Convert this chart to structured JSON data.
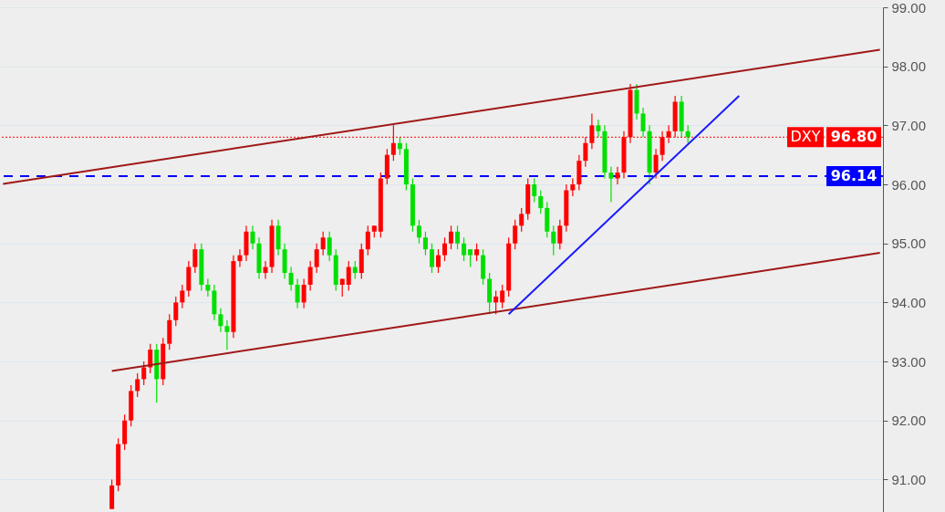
{
  "chart_data": {
    "type": "candlestick",
    "categories": [
      null,
      null,
      null,
      null,
      null,
      null,
      null,
      null,
      null,
      null,
      null,
      null,
      null,
      null,
      null,
      null,
      null,
      null,
      null,
      null,
      null,
      null,
      null,
      null,
      null,
      null,
      null,
      null,
      null,
      null,
      null,
      null,
      null,
      null,
      null,
      null,
      null,
      null,
      null,
      null,
      null,
      null,
      null,
      null,
      null,
      null,
      null,
      null,
      null,
      null,
      null,
      null,
      null,
      null,
      null,
      null,
      null,
      null,
      null,
      null,
      null,
      null,
      null,
      null,
      null,
      null,
      null,
      null,
      null,
      null,
      null,
      null,
      null,
      null,
      null,
      null,
      null,
      null,
      null,
      null,
      null,
      null,
      null,
      null,
      null,
      null,
      null,
      null,
      null,
      null,
      null,
      null,
      null,
      null,
      null,
      null,
      null,
      null,
      null,
      null,
      null,
      null,
      null,
      null,
      null,
      null,
      null,
      null,
      null,
      null,
      null,
      null,
      null,
      null,
      null,
      null,
      null,
      null,
      null,
      null,
      null,
      null,
      null,
      null,
      null,
      null,
      null,
      null,
      null,
      null,
      null,
      null,
      null,
      null,
      null,
      null,
      null,
      null
    ],
    "ohlc": [
      null,
      null,
      null,
      null,
      null,
      null,
      null,
      null,
      null,
      null,
      null,
      null,
      null,
      null,
      null,
      null,
      null,
      [
        90.5,
        91.0,
        90.5,
        90.9
      ],
      [
        90.9,
        91.7,
        90.8,
        91.6
      ],
      [
        91.6,
        92.1,
        91.5,
        92.0
      ],
      [
        92.0,
        92.6,
        91.9,
        92.5
      ],
      [
        92.5,
        92.8,
        92.4,
        92.7
      ],
      [
        92.7,
        93.0,
        92.6,
        92.9
      ],
      [
        92.9,
        93.3,
        92.8,
        93.2
      ],
      [
        93.2,
        93.3,
        92.3,
        92.7
      ],
      [
        92.7,
        93.4,
        92.6,
        93.3
      ],
      [
        93.3,
        93.8,
        93.2,
        93.7
      ],
      [
        93.7,
        94.1,
        93.6,
        94.0
      ],
      [
        94.0,
        94.3,
        93.9,
        94.2
      ],
      [
        94.2,
        94.7,
        94.1,
        94.6
      ],
      [
        94.6,
        95.0,
        94.5,
        94.9
      ],
      [
        94.9,
        95.0,
        94.2,
        94.3
      ],
      [
        94.3,
        94.4,
        94.1,
        94.2
      ],
      [
        94.2,
        94.3,
        93.7,
        93.8
      ],
      [
        93.8,
        93.9,
        93.5,
        93.6
      ],
      [
        93.6,
        93.7,
        93.2,
        93.5
      ],
      [
        93.5,
        94.8,
        93.4,
        94.7
      ],
      [
        94.7,
        94.9,
        94.6,
        94.8
      ],
      [
        94.8,
        95.3,
        94.7,
        95.2
      ],
      [
        95.2,
        95.3,
        94.9,
        95.0
      ],
      [
        95.0,
        95.1,
        94.4,
        94.5
      ],
      [
        94.5,
        94.7,
        94.4,
        94.6
      ],
      [
        94.6,
        95.4,
        94.5,
        95.3
      ],
      [
        95.3,
        95.4,
        94.8,
        94.9
      ],
      [
        94.9,
        95.0,
        94.4,
        94.5
      ],
      [
        94.5,
        94.6,
        94.2,
        94.3
      ],
      [
        94.3,
        94.4,
        93.9,
        94.0
      ],
      [
        94.0,
        94.4,
        93.9,
        94.3
      ],
      [
        94.3,
        94.7,
        94.2,
        94.6
      ],
      [
        94.6,
        95.0,
        94.5,
        94.9
      ],
      [
        94.9,
        95.2,
        94.8,
        95.1
      ],
      [
        95.1,
        95.2,
        94.7,
        94.8
      ],
      [
        94.8,
        94.9,
        94.2,
        94.3
      ],
      [
        94.3,
        94.4,
        94.1,
        94.4
      ],
      [
        94.3,
        94.7,
        94.2,
        94.6
      ],
      [
        94.6,
        94.7,
        94.4,
        94.5
      ],
      [
        94.5,
        95.0,
        94.4,
        94.9
      ],
      [
        94.9,
        95.3,
        94.8,
        95.2
      ],
      [
        95.2,
        95.3,
        95.1,
        95.3
      ],
      [
        95.2,
        96.2,
        95.1,
        96.1
      ],
      [
        96.1,
        96.6,
        96.0,
        96.5
      ],
      [
        96.5,
        97.0,
        96.4,
        96.7
      ],
      [
        96.7,
        96.8,
        96.5,
        96.6
      ],
      [
        96.6,
        96.7,
        95.9,
        96.0
      ],
      [
        96.0,
        96.1,
        95.2,
        95.3
      ],
      [
        95.3,
        95.4,
        95.0,
        95.1
      ],
      [
        95.1,
        95.2,
        94.8,
        94.9
      ],
      [
        94.9,
        95.0,
        94.5,
        94.6
      ],
      [
        94.6,
        94.9,
        94.5,
        94.8
      ],
      [
        94.8,
        95.1,
        94.7,
        95.0
      ],
      [
        95.0,
        95.3,
        94.9,
        95.2
      ],
      [
        95.2,
        95.3,
        94.9,
        95.0
      ],
      [
        95.0,
        95.1,
        94.7,
        94.8
      ],
      [
        94.9,
        94.9,
        94.6,
        94.8
      ],
      [
        94.8,
        95.0,
        94.7,
        94.9
      ],
      [
        94.8,
        94.9,
        94.3,
        94.4
      ],
      [
        94.4,
        94.5,
        93.8,
        94.0
      ],
      [
        94.0,
        94.2,
        93.8,
        94.1
      ],
      [
        94.0,
        94.3,
        93.9,
        94.2
      ],
      [
        94.2,
        95.1,
        94.1,
        95.0
      ],
      [
        95.0,
        95.4,
        94.9,
        95.3
      ],
      [
        95.3,
        95.6,
        95.2,
        95.5
      ],
      [
        95.5,
        96.1,
        95.4,
        96.0
      ],
      [
        96.0,
        96.1,
        95.7,
        95.8
      ],
      [
        95.8,
        95.9,
        95.5,
        95.6
      ],
      [
        95.6,
        95.7,
        95.1,
        95.2
      ],
      [
        95.2,
        95.3,
        94.8,
        95.0
      ],
      [
        95.0,
        95.4,
        94.9,
        95.3
      ],
      [
        95.3,
        96.0,
        95.2,
        95.9
      ],
      [
        95.9,
        96.1,
        95.8,
        96.0
      ],
      [
        96.0,
        96.5,
        95.9,
        96.4
      ],
      [
        96.4,
        96.8,
        96.3,
        96.7
      ],
      [
        96.7,
        97.2,
        96.6,
        97.0
      ],
      [
        97.0,
        97.1,
        96.8,
        96.9
      ],
      [
        96.9,
        97.0,
        96.1,
        96.2
      ],
      [
        96.2,
        96.3,
        95.7,
        96.1
      ],
      [
        96.1,
        96.3,
        96.0,
        96.2
      ],
      [
        96.2,
        96.9,
        96.1,
        96.8
      ],
      [
        96.8,
        97.7,
        96.7,
        97.6
      ],
      [
        97.6,
        97.7,
        97.1,
        97.2
      ],
      [
        97.2,
        97.3,
        96.8,
        96.9
      ],
      [
        96.9,
        97.0,
        96.0,
        96.2
      ],
      [
        96.2,
        96.6,
        96.1,
        96.5
      ],
      [
        96.5,
        96.9,
        96.4,
        96.8
      ],
      [
        96.8,
        97.0,
        96.7,
        96.9
      ],
      [
        96.9,
        97.5,
        96.8,
        97.4
      ],
      [
        97.4,
        97.5,
        96.8,
        96.9
      ],
      [
        96.9,
        97.0,
        96.7,
        96.8
      ],
      null,
      null,
      null,
      null,
      null,
      null,
      null,
      null,
      null,
      null,
      null,
      null,
      null,
      null,
      null,
      null,
      null,
      null,
      null,
      null,
      null,
      null,
      null,
      null,
      null,
      null,
      null,
      null,
      null,
      null
    ],
    "colors": [
      null,
      null,
      null,
      null,
      null,
      null,
      null,
      null,
      null,
      null,
      null,
      null,
      null,
      null,
      null,
      null,
      null,
      "#ff0000",
      "#ff0000",
      "#ff0000",
      "#ff0000",
      "#ff0000",
      "#ff0000",
      "#ff0000",
      "#00e000",
      "#ff0000",
      "#ff0000",
      "#ff0000",
      "#ff0000",
      "#ff0000",
      "#ff0000",
      "#00e000",
      "#00e000",
      "#00e000",
      "#00e000",
      "#00e000",
      "#ff0000",
      "#ff0000",
      "#ff0000",
      "#00e000",
      "#00e000",
      "#ff0000",
      "#ff0000",
      "#00e000",
      "#00e000",
      "#00e000",
      "#00e000",
      "#ff0000",
      "#ff0000",
      "#ff0000",
      "#ff0000",
      "#00e000",
      "#00e000",
      "#ff0000",
      "#ff0000",
      "#00e000",
      "#ff0000",
      "#ff0000",
      "#ff0000",
      "#ff0000",
      "#ff0000",
      "#ff0000",
      "#00e000",
      "#00e000",
      "#00e000",
      "#00e000",
      "#00e000",
      "#00e000",
      "#ff0000",
      "#ff0000",
      "#ff0000",
      "#00e000",
      "#00e000",
      "#00e000",
      "#ff0000",
      "#00e000",
      "#00e000",
      "#ff0000",
      "#ff0000",
      "#ff0000",
      "#ff0000",
      "#ff0000",
      "#ff0000",
      "#00e000",
      "#00e000",
      "#00e000",
      "#00e000",
      "#ff0000",
      "#ff0000",
      "#ff0000",
      "#ff0000",
      "#ff0000",
      "#ff0000",
      "#00e000",
      "#00e000",
      "#00e000",
      "#ff0000",
      "#ff0000",
      "#ff0000",
      "#00e000",
      "#00e000",
      "#00e000",
      "#ff0000",
      "#ff0000",
      "#ff0000",
      "#ff0000",
      "#00e000",
      "#00e000",
      null,
      null,
      null,
      null,
      null,
      null,
      null,
      null,
      null,
      null,
      null,
      null,
      null,
      null,
      null,
      null,
      null,
      null,
      null,
      null,
      null,
      null,
      null,
      null,
      null,
      null,
      null,
      null,
      null,
      null
    ],
    "series": [
      {
        "type": "line",
        "color": "#a01818",
        "values": [
          96.01,
          null,
          null,
          null,
          null,
          null,
          null,
          null,
          null,
          null,
          null,
          null,
          null,
          null,
          null,
          null,
          null,
          null,
          null,
          null,
          null,
          null,
          null,
          null,
          null,
          null,
          null,
          null,
          null,
          null,
          null,
          null,
          null,
          null,
          null,
          null,
          null,
          null,
          null,
          null,
          null,
          null,
          null,
          null,
          null,
          null,
          null,
          null,
          null,
          null,
          null,
          null,
          null,
          null,
          null,
          null,
          null,
          null,
          null,
          null,
          null,
          null,
          null,
          null,
          null,
          null,
          null,
          null,
          null,
          null,
          null,
          null,
          null,
          null,
          null,
          null,
          null,
          null,
          null,
          null,
          null,
          null,
          null,
          null,
          null,
          null,
          null,
          null,
          null,
          null,
          null,
          null,
          null,
          null,
          null,
          null,
          null,
          null,
          null,
          null,
          null,
          null,
          null,
          null,
          null,
          null,
          null,
          null,
          null,
          null,
          null,
          null,
          null,
          null,
          null,
          null,
          null,
          null,
          null,
          null,
          null,
          null,
          null,
          null,
          null,
          null,
          null,
          null,
          null,
          null,
          null,
          null,
          null,
          null,
          null,
          null,
          null,
          98.28
        ]
      },
      {
        "type": "line",
        "color": "#a01818",
        "values": [
          null,
          null,
          null,
          null,
          null,
          null,
          null,
          null,
          null,
          null,
          null,
          null,
          null,
          null,
          null,
          null,
          null,
          92.84,
          null,
          null,
          null,
          null,
          null,
          null,
          null,
          null,
          null,
          null,
          null,
          null,
          null,
          null,
          null,
          null,
          null,
          null,
          null,
          null,
          null,
          null,
          null,
          null,
          null,
          null,
          null,
          null,
          null,
          null,
          null,
          null,
          null,
          null,
          null,
          null,
          null,
          null,
          null,
          null,
          null,
          null,
          null,
          null,
          null,
          null,
          null,
          null,
          null,
          null,
          null,
          null,
          null,
          null,
          null,
          null,
          null,
          null,
          null,
          null,
          null,
          null,
          null,
          null,
          null,
          null,
          null,
          null,
          null,
          null,
          null,
          null,
          null,
          null,
          null,
          null,
          null,
          null,
          null,
          null,
          null,
          null,
          null,
          null,
          null,
          null,
          null,
          null,
          null,
          null,
          null,
          null,
          null,
          null,
          null,
          null,
          null,
          null,
          null,
          null,
          null,
          null,
          null,
          null,
          null,
          null,
          null,
          null,
          null,
          null,
          null,
          null,
          null,
          null,
          null,
          null,
          null,
          null,
          null,
          94.84
        ]
      },
      {
        "type": "line",
        "color": "#1a1aff",
        "values": [
          null,
          null,
          null,
          null,
          null,
          null,
          null,
          null,
          null,
          null,
          null,
          null,
          null,
          null,
          null,
          null,
          null,
          null,
          null,
          null,
          null,
          null,
          null,
          null,
          null,
          null,
          null,
          null,
          null,
          null,
          null,
          null,
          null,
          null,
          null,
          null,
          null,
          null,
          null,
          null,
          null,
          null,
          null,
          null,
          null,
          null,
          null,
          null,
          null,
          null,
          null,
          null,
          null,
          null,
          null,
          null,
          null,
          null,
          null,
          null,
          null,
          null,
          null,
          null,
          null,
          null,
          null,
          null,
          null,
          null,
          null,
          null,
          null,
          null,
          null,
          null,
          null,
          null,
          null,
          93.8,
          null,
          null,
          null,
          null,
          null,
          null,
          null,
          null,
          null,
          null,
          null,
          null,
          null,
          null,
          null,
          null,
          null,
          null,
          null,
          null,
          null,
          null,
          null,
          null,
          null,
          null,
          null,
          null,
          null,
          null,
          null,
          null,
          null,
          null,
          null,
          97.5,
          null,
          null,
          null,
          null,
          null,
          null,
          null,
          null,
          null,
          null,
          null,
          null,
          null,
          null,
          null,
          null,
          null,
          null,
          null,
          null,
          null,
          null
        ]
      }
    ],
    "ylim": [
      90.45,
      99.0
    ],
    "yticks": [
      {
        "value": 91,
        "label": "91.00"
      },
      {
        "value": 92,
        "label": "92.00"
      },
      {
        "value": 93,
        "label": "93.00"
      },
      {
        "value": 94,
        "label": "94.00"
      },
      {
        "value": 95,
        "label": "95.00"
      },
      {
        "value": 96,
        "label": "96.00"
      },
      {
        "value": 97,
        "label": "97.00"
      },
      {
        "value": 98,
        "label": "98.00"
      },
      {
        "value": 99,
        "label": "99.00"
      }
    ],
    "ref_lines": [
      {
        "axis": "y",
        "value": 96.8,
        "label": "96.80",
        "color": "#ff0000",
        "line_style": "dotted"
      },
      {
        "axis": "y",
        "value": 96.14,
        "label": "96.14",
        "color": "#0000ff",
        "line_style": "dashed"
      }
    ],
    "annotations": [
      {
        "text": "DXY",
        "y": 96.8
      }
    ],
    "grid": "y",
    "tick_labels": "y"
  }
}
